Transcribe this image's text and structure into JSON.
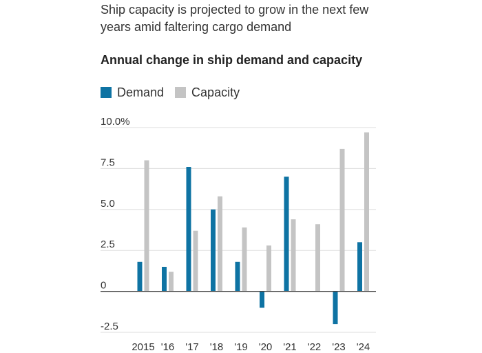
{
  "subtitle": "Ship capacity is projected to grow in the next few years amid faltering cargo demand",
  "colors": {
    "demand": "#0e73a3",
    "capacity": "#c4c4c4",
    "grid": "#dddddd",
    "axis": "#444444",
    "text": "#333333"
  },
  "chart_data": {
    "type": "bar",
    "title": "Annual change in ship demand and capacity",
    "xlabel": "",
    "ylabel": "",
    "categories": [
      "2015",
      "'16",
      "'17",
      "'18",
      "'19",
      "'20",
      "'21",
      "'22",
      "'23",
      "'24"
    ],
    "series": [
      {
        "name": "Demand",
        "values": [
          1.8,
          1.5,
          7.6,
          5.0,
          1.8,
          -1.0,
          7.0,
          0.0,
          -2.0,
          3.0
        ]
      },
      {
        "name": "Capacity",
        "values": [
          8.0,
          1.2,
          3.7,
          5.8,
          3.9,
          2.8,
          4.4,
          4.1,
          8.7,
          9.7
        ]
      }
    ],
    "ylim": [
      -2.5,
      10.0
    ],
    "yticks": [
      -2.5,
      0,
      2.5,
      5.0,
      7.5,
      10.0
    ],
    "ytick_labels": [
      "-2.5",
      "0",
      "2.5",
      "5.0",
      "7.5",
      "10.0%"
    ],
    "legend_position": "top-left",
    "grid": true
  }
}
